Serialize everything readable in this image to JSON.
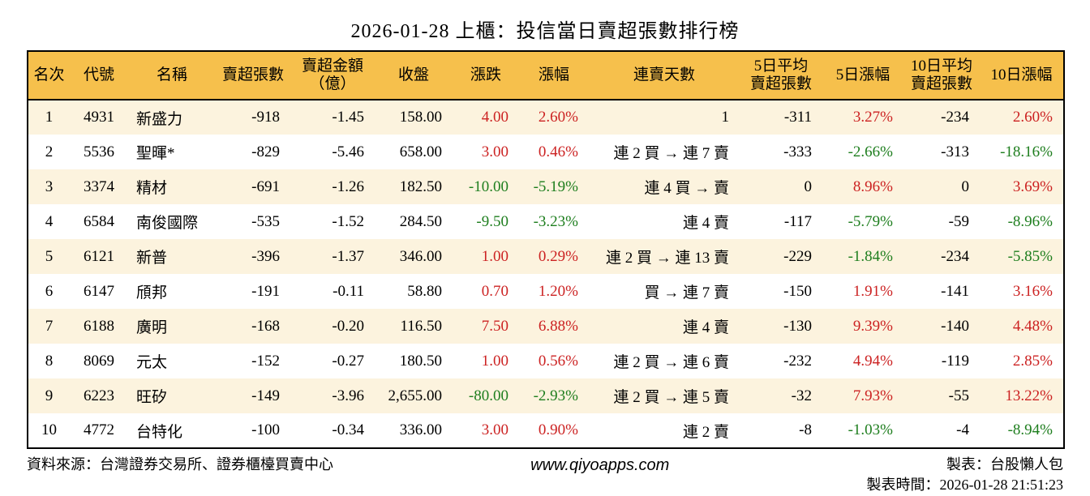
{
  "title": "2026-01-28 上櫃：投信當日賣超張數排行榜",
  "colors": {
    "header_bg": "#f6c04c",
    "row_stripe_bg": "#fcf3de",
    "up_red": "#cc2222",
    "down_green": "#1e7e1e",
    "border": "#000000",
    "text": "#000000"
  },
  "chart_data": {
    "type": "table",
    "title": "2026-01-28 上櫃：投信當日賣超張數排行榜",
    "columns": [
      "名次",
      "代號",
      "名稱",
      "賣超張數",
      "賣超金額\n（億）",
      "收盤",
      "漲跌",
      "漲幅",
      "連賣天數",
      "5日平均\n賣超張數",
      "5日漲幅",
      "10日平均\n賣超張數",
      "10日漲幅"
    ],
    "rows": [
      [
        "1",
        "4931",
        "新盛力",
        "-918",
        "-1.45",
        "158.00",
        "4.00",
        "2.60%",
        "1",
        "-311",
        "3.27%",
        "-234",
        "2.60%"
      ],
      [
        "2",
        "5536",
        "聖暉*",
        "-829",
        "-5.46",
        "658.00",
        "3.00",
        "0.46%",
        "連 2 買 → 連 7 賣",
        "-333",
        "-2.66%",
        "-313",
        "-18.16%"
      ],
      [
        "3",
        "3374",
        "精材",
        "-691",
        "-1.26",
        "182.50",
        "-10.00",
        "-5.19%",
        "連 4 買 → 賣",
        "0",
        "8.96%",
        "0",
        "3.69%"
      ],
      [
        "4",
        "6584",
        "南俊國際",
        "-535",
        "-1.52",
        "284.50",
        "-9.50",
        "-3.23%",
        "連 4 賣",
        "-117",
        "-5.79%",
        "-59",
        "-8.96%"
      ],
      [
        "5",
        "6121",
        "新普",
        "-396",
        "-1.37",
        "346.00",
        "1.00",
        "0.29%",
        "連 2 買 → 連 13 賣",
        "-229",
        "-1.84%",
        "-234",
        "-5.85%"
      ],
      [
        "6",
        "6147",
        "頎邦",
        "-191",
        "-0.11",
        "58.80",
        "0.70",
        "1.20%",
        "買 → 連 7 賣",
        "-150",
        "1.91%",
        "-141",
        "3.16%"
      ],
      [
        "7",
        "6188",
        "廣明",
        "-168",
        "-0.20",
        "116.50",
        "7.50",
        "6.88%",
        "連 4 賣",
        "-130",
        "9.39%",
        "-140",
        "4.48%"
      ],
      [
        "8",
        "8069",
        "元太",
        "-152",
        "-0.27",
        "180.50",
        "1.00",
        "0.56%",
        "連 2 買 → 連 6 賣",
        "-232",
        "4.94%",
        "-119",
        "2.85%"
      ],
      [
        "9",
        "6223",
        "旺矽",
        "-149",
        "-3.96",
        "2,655.00",
        "-80.00",
        "-2.93%",
        "連 2 買 → 連 5 賣",
        "-32",
        "7.93%",
        "-55",
        "13.22%"
      ],
      [
        "10",
        "4772",
        "台特化",
        "-100",
        "-0.34",
        "336.00",
        "3.00",
        "0.90%",
        "連 2 賣",
        "-8",
        "-1.03%",
        "-4",
        "-8.94%"
      ]
    ],
    "color_rule": "columns 漲跌/漲幅/5日漲幅/10日漲幅: positive values red (#cc2222), negative values green (#1e7e1e)",
    "legend_position": "none",
    "grid": "zebra-stripes"
  },
  "footer": {
    "source": "資料來源：台灣證券交易所、證券櫃檯買賣中心",
    "website": "www.qiyoapps.com",
    "author": "製表：台股懶人包",
    "generated": "製表時間：2026-01-28 21:51:23"
  }
}
